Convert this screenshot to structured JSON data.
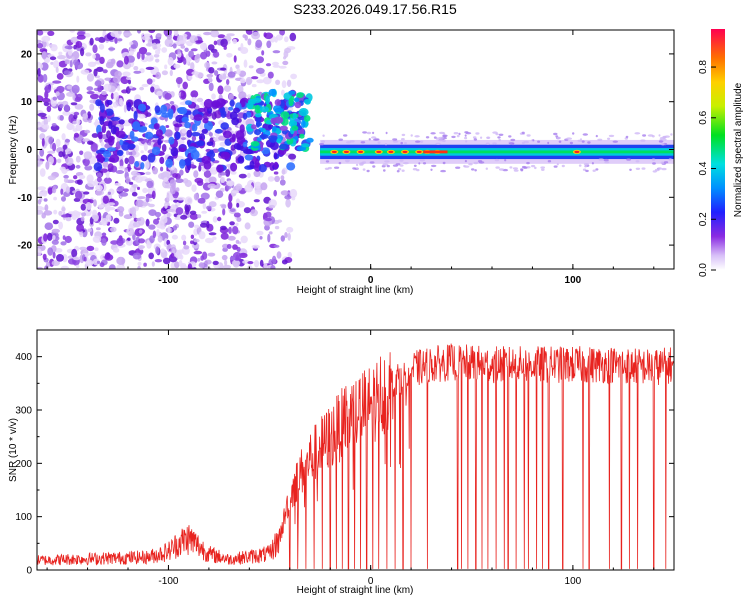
{
  "title": "S233.2026.049.17.56.R15",
  "colors": {
    "snr_line": "#e8231f",
    "spectro_low": "#c8a8f0",
    "spectro_mid": "#7a1fd8",
    "spectro_band": "#00c8e0"
  },
  "chart_data": [
    {
      "type": "heatmap",
      "xlabel": "Height of straight line (km)",
      "ylabel": "Frequency (Hz)",
      "xlim": [
        -165,
        150
      ],
      "ylim": [
        -25,
        25
      ],
      "xticks": [
        -100,
        0,
        100
      ],
      "yticks": [
        -20,
        -10,
        0,
        10,
        20
      ],
      "xtick_labels": [
        "-100",
        "0",
        "100"
      ],
      "ytick_labels": [
        "-20",
        "-10",
        "0",
        "10",
        "20"
      ],
      "colorbar": {
        "label": "Normalized spectral amplitude",
        "range": [
          0.0,
          0.95
        ],
        "ticks": [
          0.0,
          0.2,
          0.4,
          0.6,
          0.8
        ],
        "tick_labels": [
          "0.0",
          "0.2",
          "0.4",
          "0.6",
          "0.8"
        ]
      },
      "description_regions": {
        "noise_x_range": [
          -165,
          -50
        ],
        "transition_x_range": [
          -50,
          -25
        ],
        "tone_x_range": [
          -25,
          150
        ],
        "tone_frequency_hz": -0.5
      }
    },
    {
      "type": "line",
      "xlabel": "Height of straight line (km)",
      "ylabel": "SNR (10 * v/v)",
      "xlim": [
        -165,
        150
      ],
      "ylim": [
        0,
        450
      ],
      "xticks": [
        -100,
        0,
        100
      ],
      "yticks": [
        0,
        100,
        200,
        300,
        400
      ],
      "xtick_labels": [
        "-100",
        "0",
        "100"
      ],
      "ytick_labels": [
        "0",
        "100",
        "200",
        "300",
        "400"
      ],
      "series": [
        {
          "name": "SNR",
          "x": [
            -165,
            -150,
            -130,
            -110,
            -100,
            -95,
            -90,
            -80,
            -70,
            -60,
            -50,
            -45,
            -40,
            -35,
            -30,
            -25,
            -20,
            -15,
            -10,
            -5,
            0,
            5,
            10,
            20,
            30,
            40,
            60,
            80,
            100,
            120,
            140,
            150
          ],
          "y": [
            18,
            20,
            22,
            24,
            35,
            50,
            60,
            30,
            20,
            25,
            30,
            60,
            140,
            180,
            210,
            230,
            250,
            270,
            290,
            300,
            310,
            330,
            350,
            375,
            385,
            390,
            385,
            385,
            385,
            385,
            380,
            385
          ]
        }
      ],
      "dropouts_x": [
        -40,
        -36,
        -32,
        -28,
        -24,
        -20,
        -17,
        -14,
        -11,
        -8,
        -5,
        -2,
        1,
        4,
        8,
        12,
        16,
        20,
        28,
        43,
        45,
        48,
        52,
        55,
        58,
        62,
        66,
        68,
        72,
        76,
        78,
        82,
        85,
        88,
        95,
        105,
        108,
        118,
        124,
        128,
        132,
        140,
        146
      ]
    }
  ]
}
